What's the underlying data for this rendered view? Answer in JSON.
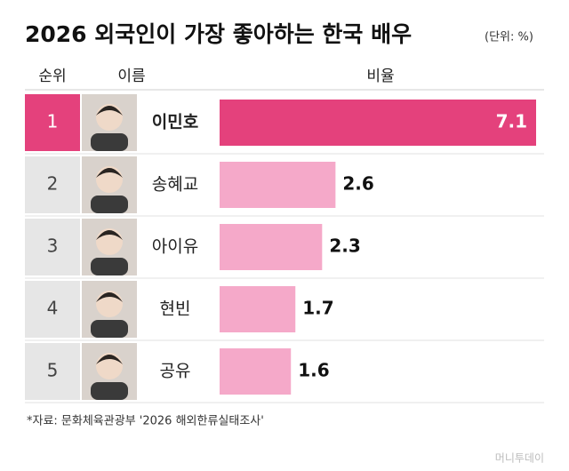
{
  "chart_data": {
    "type": "bar",
    "title": "2026 외국인이 가장 좋아하는 한국 배우",
    "unit": "(단위: %)",
    "headers": [
      "순위",
      "이름",
      "비율"
    ],
    "ranks": [
      1,
      2,
      3,
      4,
      5
    ],
    "categories": [
      "이민호",
      "송혜교",
      "아이유",
      "현빈",
      "공유"
    ],
    "values": [
      7.1,
      2.6,
      2.3,
      1.7,
      1.6
    ],
    "colors": [
      "#e4417c",
      "#f5a9c9",
      "#f5a9c9",
      "#f5a9c9",
      "#f5a9c9"
    ],
    "source": "*자료: 문화체육관광부 '2026 해외한류실태조사'",
    "watermark": "머니투데이"
  }
}
